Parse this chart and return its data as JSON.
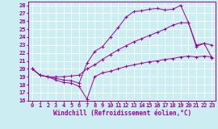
{
  "xlabel": "Windchill (Refroidissement éolien,°C)",
  "bg_color": "#cceef2",
  "line_color": "#990099",
  "grid_color": "#ffffff",
  "xlim": [
    -0.5,
    23.5
  ],
  "ylim": [
    16,
    28.5
  ],
  "xticks": [
    0,
    1,
    2,
    3,
    4,
    5,
    6,
    7,
    8,
    9,
    10,
    11,
    12,
    13,
    14,
    15,
    16,
    17,
    18,
    19,
    20,
    21,
    22,
    23
  ],
  "yticks": [
    16,
    17,
    18,
    19,
    20,
    21,
    22,
    23,
    24,
    25,
    26,
    27,
    28
  ],
  "line1_x": [
    0,
    1,
    2,
    3,
    4,
    5,
    6,
    7,
    8,
    9,
    10,
    11,
    12,
    13,
    14,
    15,
    16,
    17,
    18,
    19,
    20,
    21,
    22,
    23
  ],
  "line1_y": [
    20.0,
    19.2,
    19.0,
    18.6,
    18.3,
    18.2,
    17.8,
    16.2,
    19.0,
    19.5,
    19.7,
    20.0,
    20.3,
    20.5,
    20.7,
    20.9,
    21.0,
    21.2,
    21.3,
    21.5,
    21.6,
    21.5,
    21.6,
    21.5
  ],
  "line2_x": [
    0,
    1,
    2,
    3,
    4,
    5,
    6,
    7,
    8,
    9,
    10,
    11,
    12,
    13,
    14,
    15,
    16,
    17,
    18,
    19,
    20,
    21,
    22,
    23
  ],
  "line2_y": [
    20.0,
    19.2,
    19.0,
    18.8,
    18.6,
    18.5,
    18.2,
    20.7,
    22.2,
    22.8,
    24.0,
    25.2,
    26.5,
    27.2,
    27.3,
    27.5,
    27.6,
    27.4,
    27.5,
    28.0,
    25.8,
    23.0,
    23.2,
    23.0
  ],
  "line3_x": [
    0,
    1,
    2,
    3,
    4,
    5,
    6,
    7,
    8,
    9,
    10,
    11,
    12,
    13,
    14,
    15,
    16,
    17,
    18,
    19,
    20,
    21,
    22,
    23
  ],
  "line3_y": [
    20.0,
    19.2,
    19.0,
    19.0,
    19.0,
    19.1,
    19.2,
    20.0,
    20.5,
    21.2,
    21.8,
    22.4,
    22.9,
    23.4,
    23.8,
    24.2,
    24.6,
    25.0,
    25.5,
    25.8,
    25.8,
    22.8,
    23.2,
    21.4
  ]
}
